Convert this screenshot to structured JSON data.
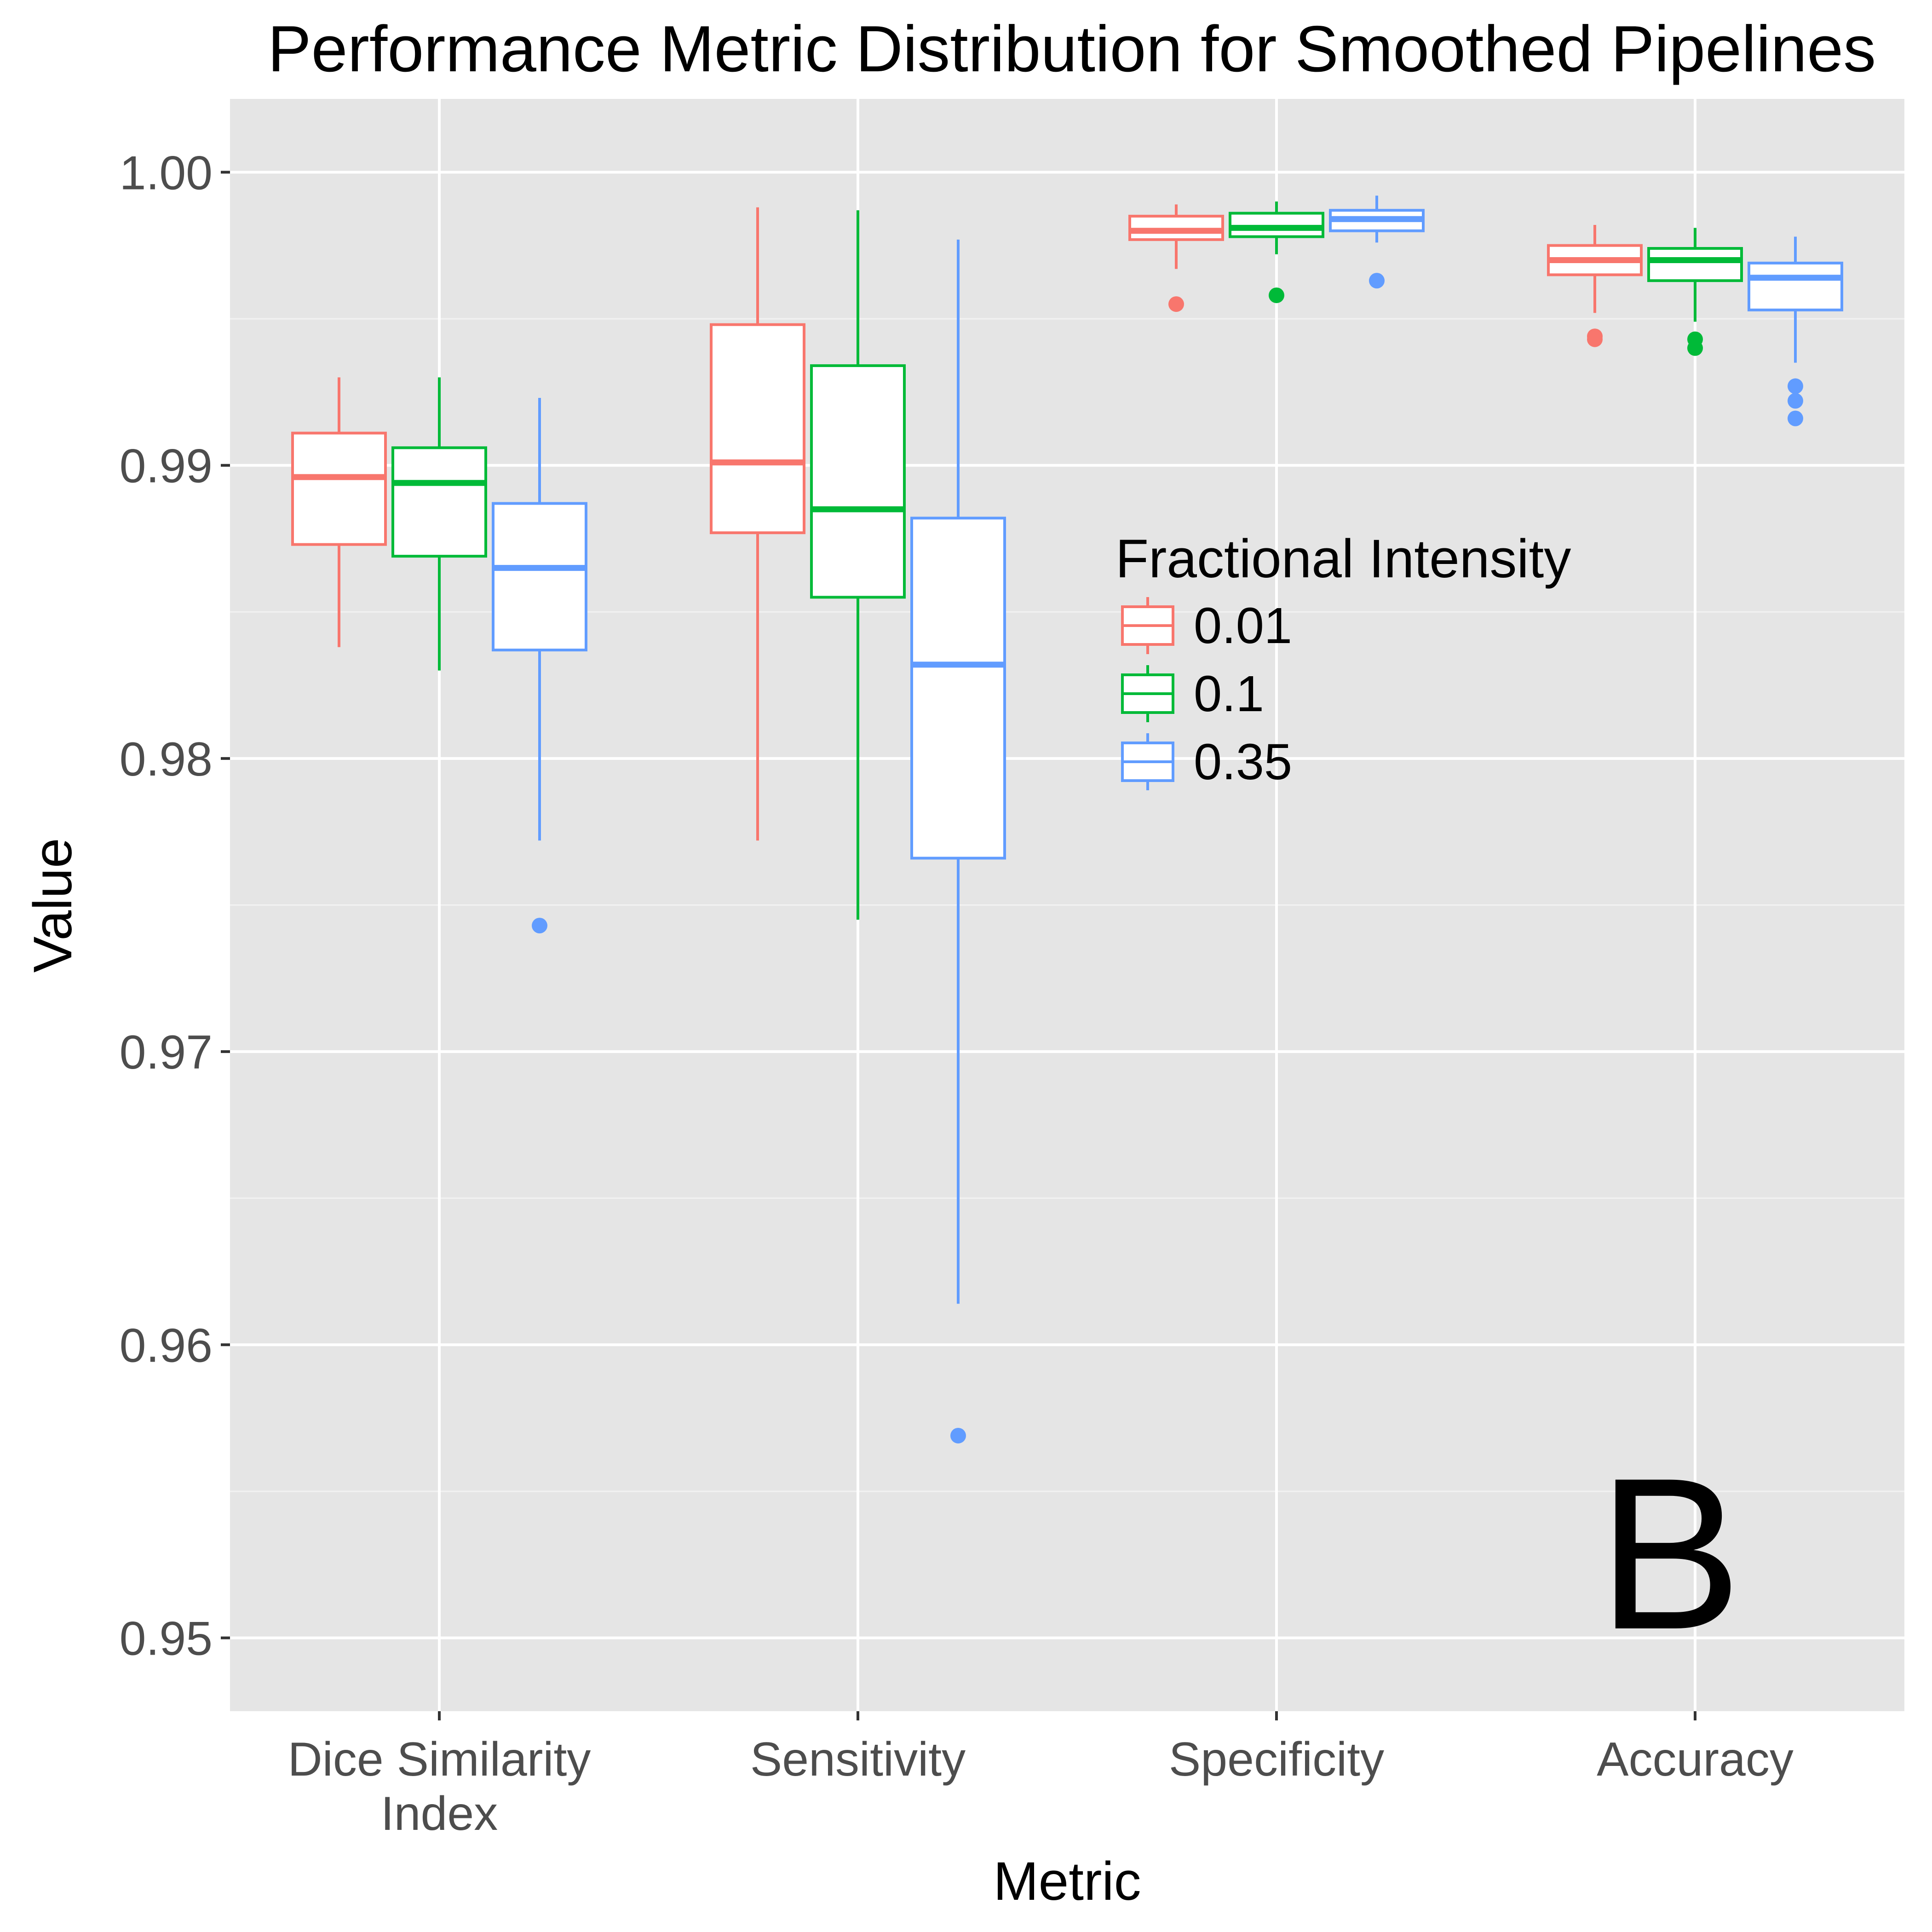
{
  "chart_data": {
    "type": "box",
    "title": "Performance Metric Distribution for Smoothed Pipelines",
    "xlabel": "Metric",
    "ylabel": "Value",
    "categories": [
      "Dice Similarity Index",
      "Sensitivity",
      "Specificity",
      "Accuracy"
    ],
    "x_tick_labels": [
      [
        "Dice Similarity",
        "Index"
      ],
      [
        "Sensitivity"
      ],
      [
        "Specificity"
      ],
      [
        "Accuracy"
      ]
    ],
    "ylim": [
      0.9475,
      1.0025
    ],
    "yticks": [
      "0.95",
      "0.96",
      "0.97",
      "0.98",
      "0.99",
      "1.00"
    ],
    "grid": true,
    "legend": {
      "title": "Fractional Intensity",
      "position": "inside-right"
    },
    "panel_tag": "B",
    "series": [
      {
        "name": "0.01",
        "color": "#F8766D",
        "boxes": [
          {
            "category": "Dice Similarity Index",
            "whisker_low": 0.9838,
            "q1": 0.9873,
            "median": 0.9896,
            "q3": 0.9911,
            "whisker_high": 0.993,
            "outliers": []
          },
          {
            "category": "Sensitivity",
            "whisker_low": 0.9772,
            "q1": 0.9877,
            "median": 0.9901,
            "q3": 0.9948,
            "whisker_high": 0.9988,
            "outliers": []
          },
          {
            "category": "Specificity",
            "whisker_low": 0.9967,
            "q1": 0.9977,
            "median": 0.998,
            "q3": 0.9985,
            "whisker_high": 0.9989,
            "outliers": [
              0.9955
            ]
          },
          {
            "category": "Accuracy",
            "whisker_low": 0.9952,
            "q1": 0.9965,
            "median": 0.997,
            "q3": 0.9975,
            "whisker_high": 0.9982,
            "outliers": [
              0.9944,
              0.9943
            ]
          }
        ]
      },
      {
        "name": "0.1",
        "color": "#00BA38",
        "boxes": [
          {
            "category": "Dice Similarity Index",
            "whisker_low": 0.983,
            "q1": 0.9869,
            "median": 0.9894,
            "q3": 0.9906,
            "whisker_high": 0.993,
            "outliers": []
          },
          {
            "category": "Sensitivity",
            "whisker_low": 0.9745,
            "q1": 0.9855,
            "median": 0.9885,
            "q3": 0.9934,
            "whisker_high": 0.9987,
            "outliers": []
          },
          {
            "category": "Specificity",
            "whisker_low": 0.9972,
            "q1": 0.9978,
            "median": 0.9981,
            "q3": 0.9986,
            "whisker_high": 0.999,
            "outliers": [
              0.9958
            ]
          },
          {
            "category": "Accuracy",
            "whisker_low": 0.9949,
            "q1": 0.9963,
            "median": 0.997,
            "q3": 0.9974,
            "whisker_high": 0.9981,
            "outliers": [
              0.9943,
              0.994
            ]
          }
        ]
      },
      {
        "name": "0.35",
        "color": "#619CFF",
        "boxes": [
          {
            "category": "Dice Similarity Index",
            "whisker_low": 0.9772,
            "q1": 0.9837,
            "median": 0.9865,
            "q3": 0.9887,
            "whisker_high": 0.9923,
            "outliers": [
              0.9743
            ]
          },
          {
            "category": "Sensitivity",
            "whisker_low": 0.9614,
            "q1": 0.9766,
            "median": 0.9832,
            "q3": 0.9882,
            "whisker_high": 0.9977,
            "outliers": [
              0.9569
            ]
          },
          {
            "category": "Specificity",
            "whisker_low": 0.9976,
            "q1": 0.998,
            "median": 0.9984,
            "q3": 0.9987,
            "whisker_high": 0.9992,
            "outliers": [
              0.9963
            ]
          },
          {
            "category": "Accuracy",
            "whisker_low": 0.9935,
            "q1": 0.9953,
            "median": 0.9964,
            "q3": 0.9969,
            "whisker_high": 0.9978,
            "outliers": [
              0.9927,
              0.9922,
              0.9916
            ]
          }
        ]
      }
    ]
  }
}
